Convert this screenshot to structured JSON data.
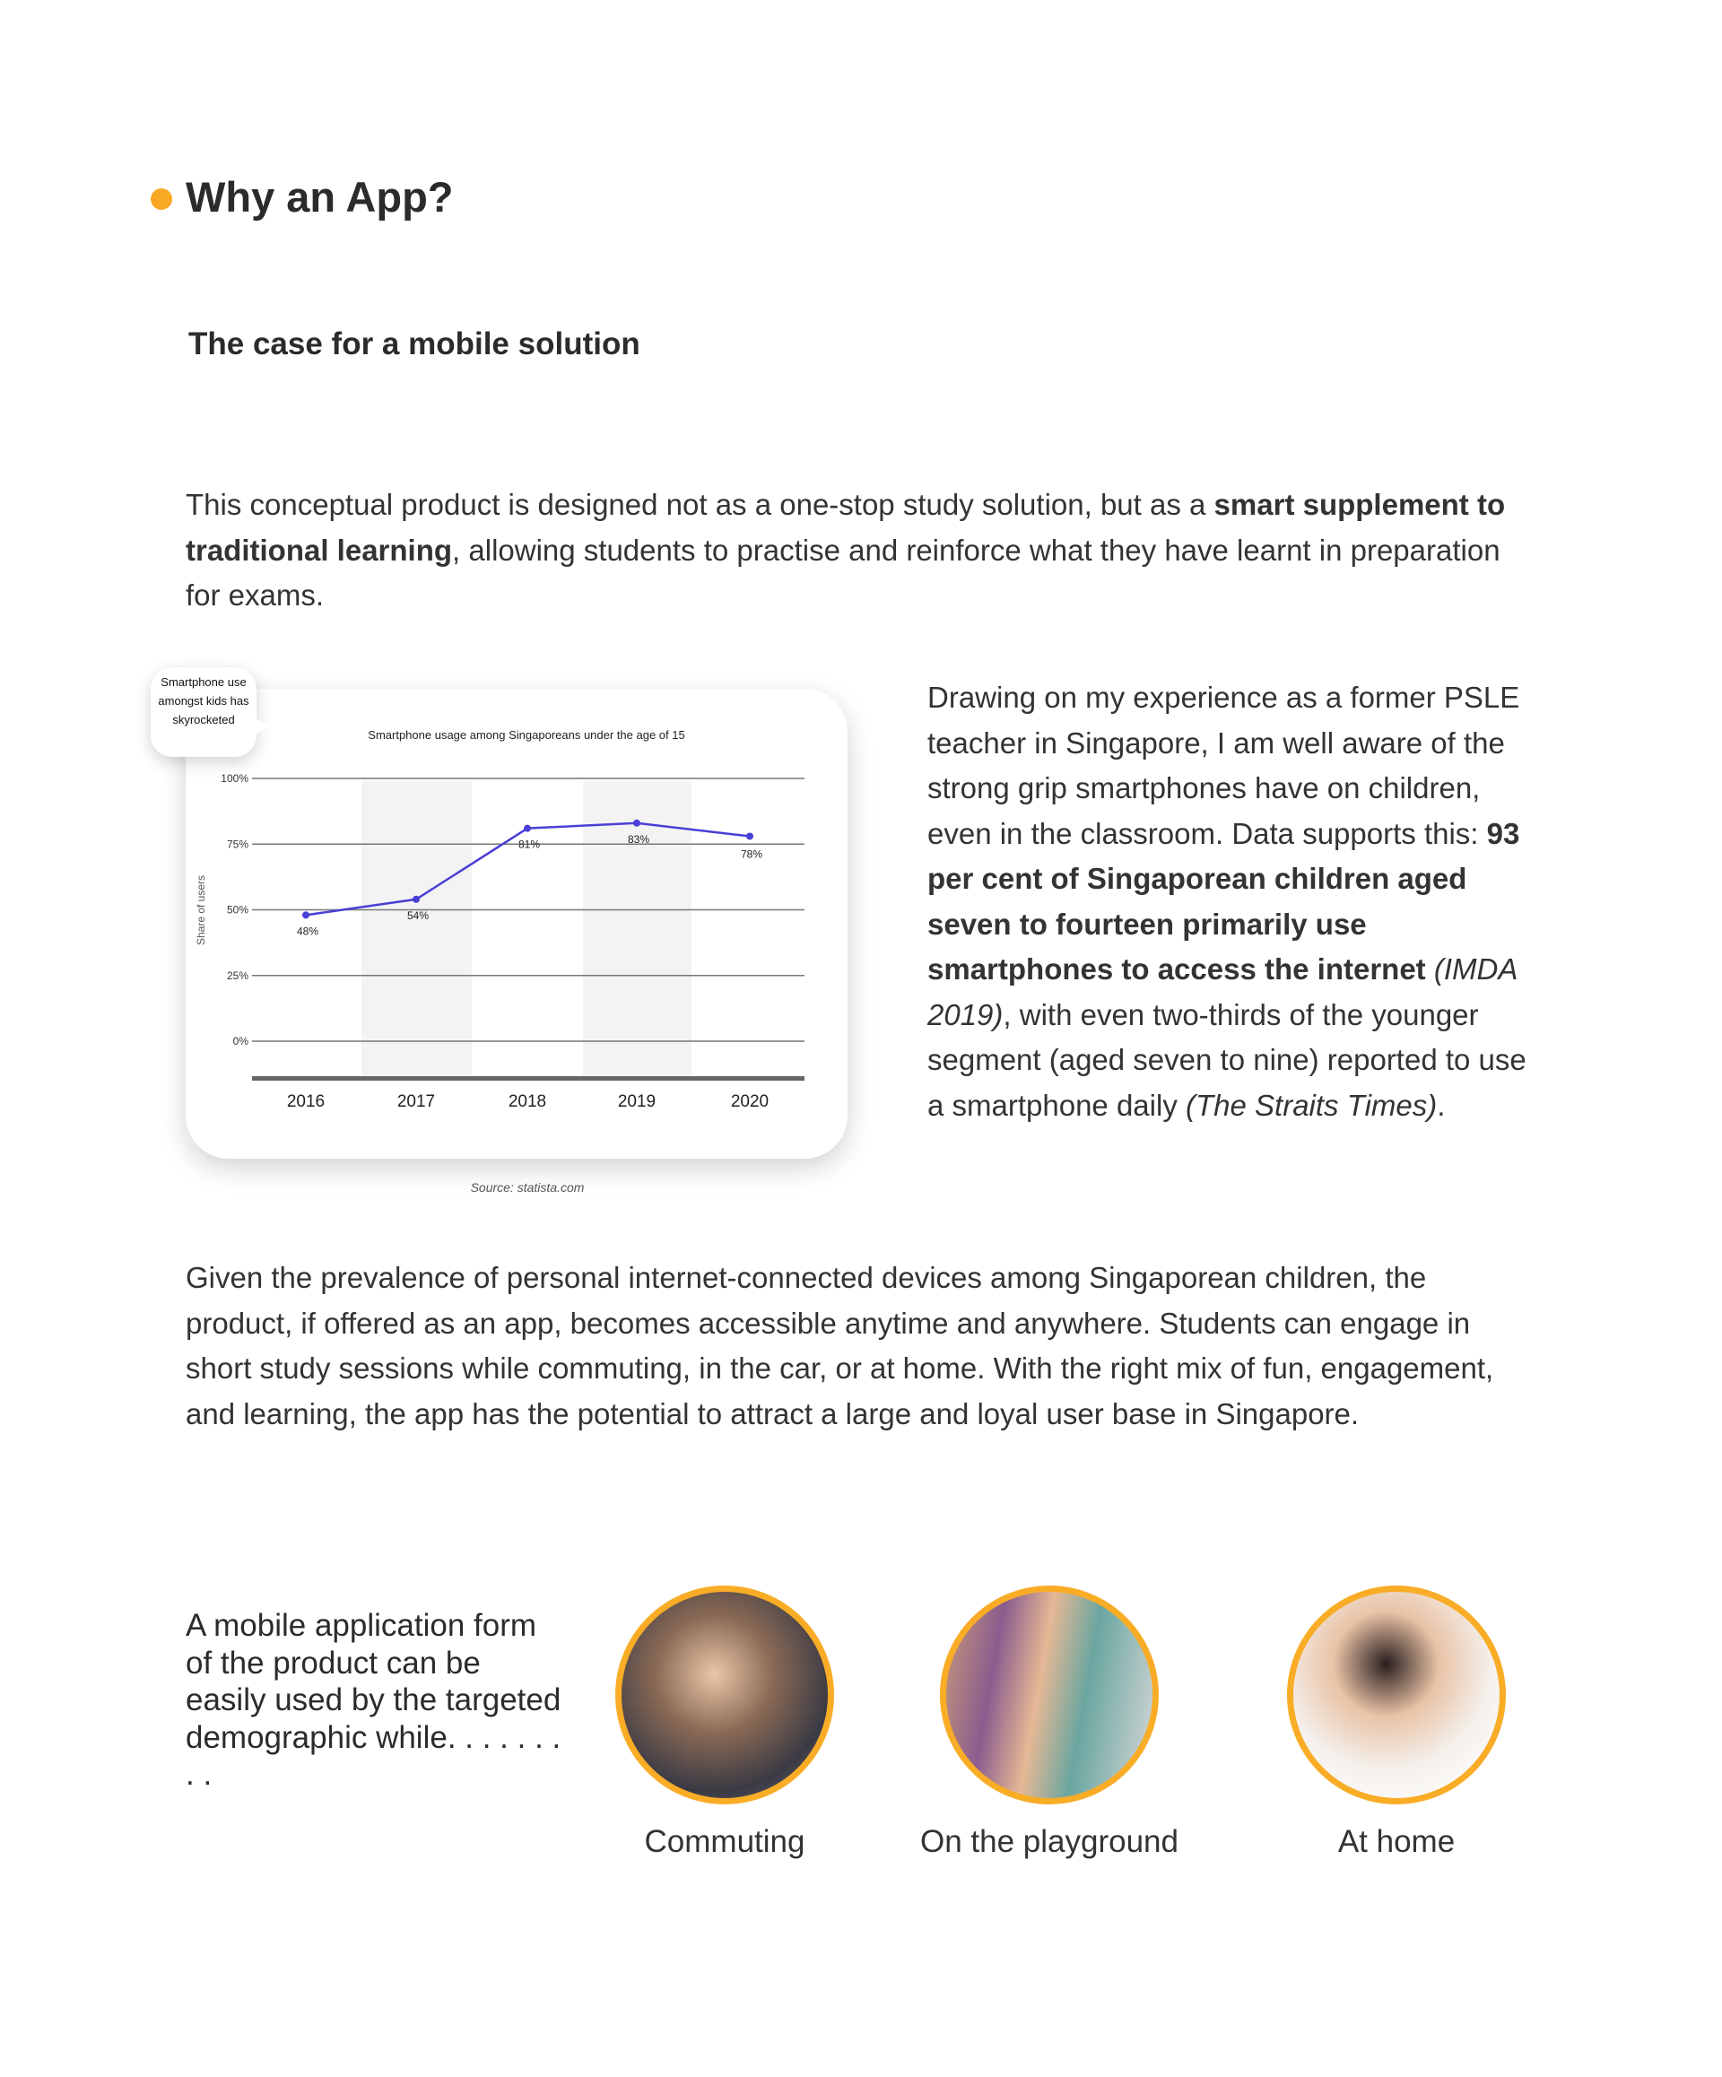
{
  "section": {
    "title": "Why an App?",
    "subtitle": "The case for a mobile solution",
    "accent_color": "#f9a825"
  },
  "intro": {
    "part1": "This conceptual product is designed not as a one-stop study solution, but as a ",
    "bold": "smart supplement to traditional learning",
    "part2": ", allowing students to practise and reinforce what they have learnt in preparation for exams."
  },
  "callout": "Smartphone use amongst kids has skyrocketed",
  "chart_source": "Source: statista.com",
  "chart_data": {
    "type": "line",
    "title": "Smartphone usage among Singaporeans under the age of 15",
    "ylabel": "Share of users",
    "xlabel": "",
    "categories": [
      "2016",
      "2017",
      "2018",
      "2019",
      "2020"
    ],
    "values": [
      48,
      54,
      81,
      83,
      78
    ],
    "data_labels": [
      "48%",
      "54%",
      "81%",
      "83%",
      "78%"
    ],
    "yticks": [
      "100%",
      "75%",
      "50%",
      "25%",
      "0%"
    ],
    "ylim": [
      0,
      100
    ],
    "grid": true,
    "line_color": "#4a3fd6"
  },
  "experience": {
    "part1": "Drawing on my experience as a former PSLE teacher in Singapore, I am well aware of the strong grip smartphones have on children, even in the classroom. Data supports this: ",
    "bold": "93 per cent of Singaporean children aged seven to fourteen primarily use smartphones to access the internet",
    "cite1": "(IMDA 2019)",
    "part2": ", with even two-thirds of the younger segment (aged seven to nine) reported to use a smartphone daily ",
    "cite2": "(The Straits Times)",
    "part3": "."
  },
  "prevalence": "Given the prevalence of personal internet-connected devices among Singaporean children, the product, if offered as an app, becomes accessible anytime and anywhere. Students can engage in short study sessions while commuting, in the car, or at home. With the right mix of fun, engagement, and learning, the app has the potential to attract a large and loyal user base in Singapore.",
  "usage": {
    "lead": "A mobile application form of the product can be easily used by the targeted demographic while. . . . . . . . .",
    "items": [
      {
        "label": "Commuting",
        "image": "boy-in-car-reading-photo"
      },
      {
        "label": "On the playground",
        "image": "kids-using-phones-photo"
      },
      {
        "label": "At home",
        "image": "mother-daughter-phone-photo"
      }
    ],
    "ring_color": "#f9ac26"
  }
}
